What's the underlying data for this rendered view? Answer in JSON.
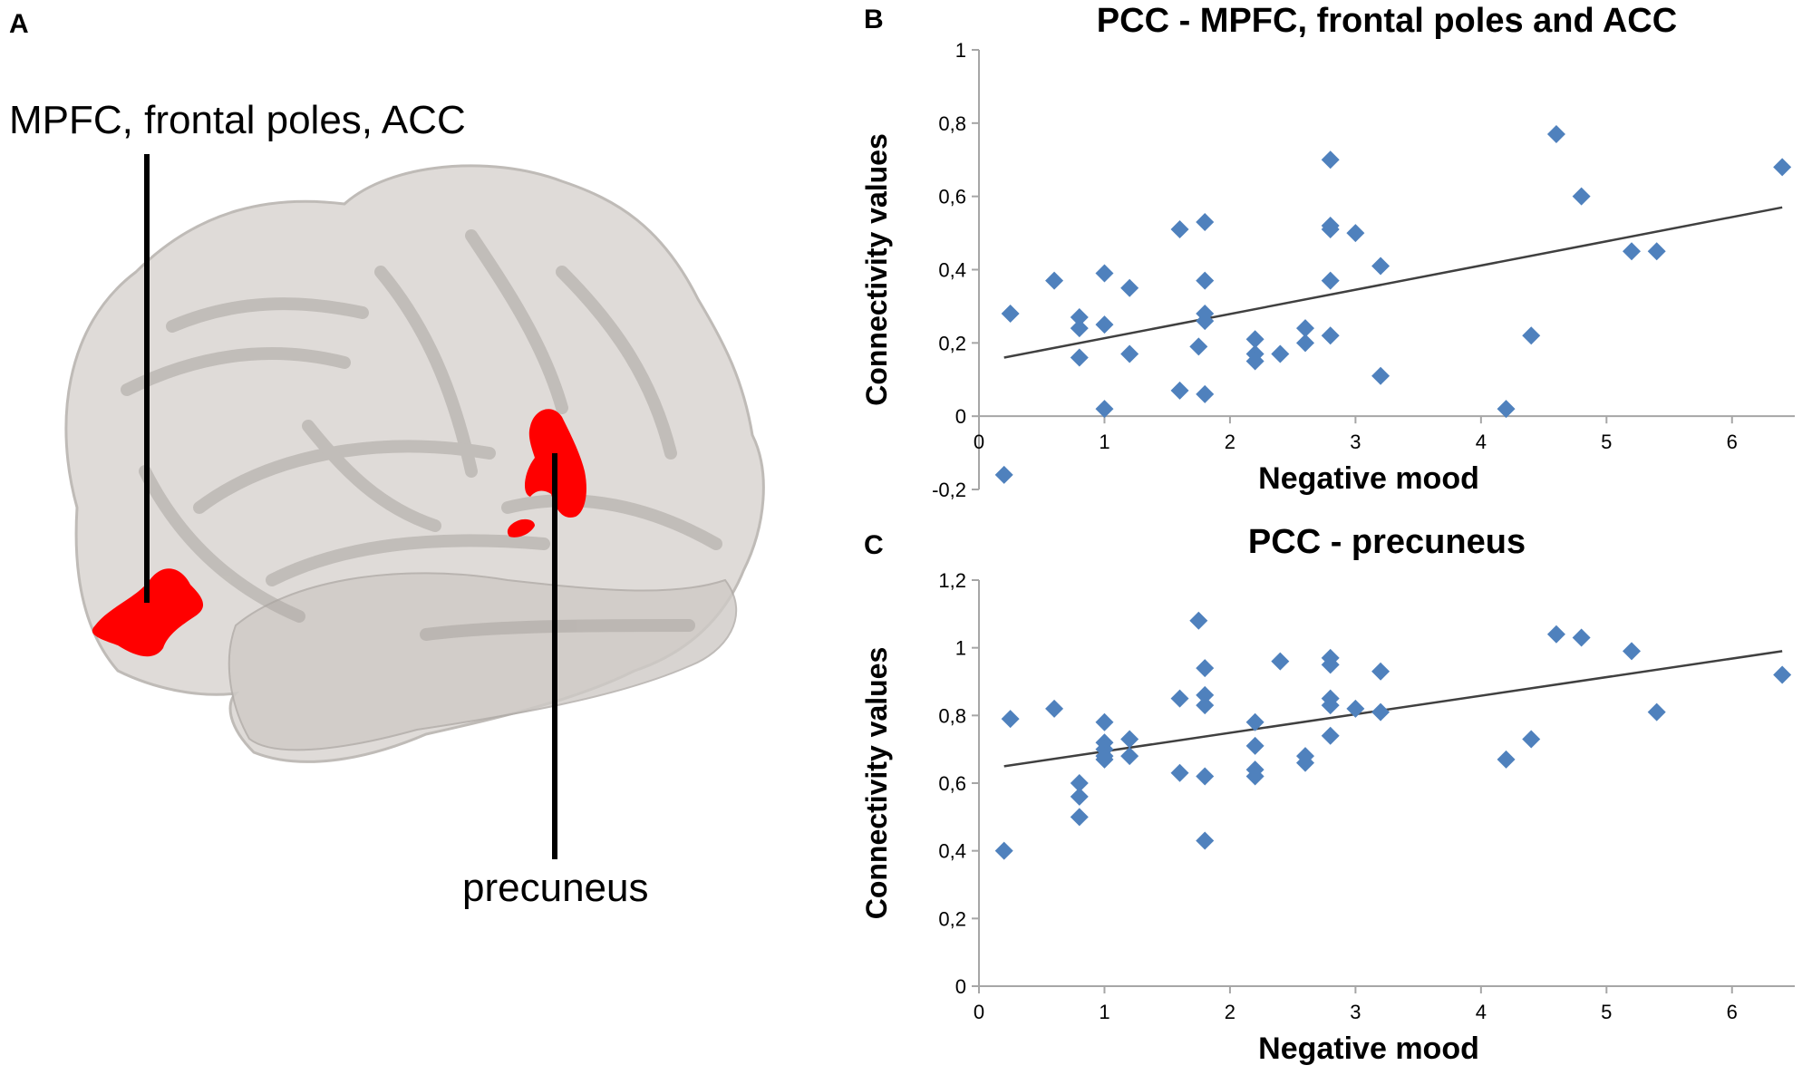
{
  "panel_a": {
    "letter": "A",
    "label_mpfc": "MPFC, frontal poles, ACC",
    "label_precuneus": "precuneus"
  },
  "colors": {
    "marker": "#4f81bd",
    "trend": "#404040",
    "axis": "#a6a6a6",
    "region": "#ff0000",
    "brain": "#d8d4d0"
  },
  "chart_data": [
    {
      "id": "B",
      "type": "scatter",
      "title": "PCC -  MPFC, frontal poles and ACC",
      "xlabel": "Negative mood",
      "ylabel": "Connectivity  values",
      "xlim": [
        0,
        6.5
      ],
      "ylim": [
        -0.2,
        1
      ],
      "xticks": [
        0,
        1,
        2,
        3,
        4,
        5,
        6
      ],
      "yticks": [
        -0.2,
        0,
        0.2,
        0.4,
        0.6,
        0.8,
        1
      ],
      "xtick_labels": [
        "0",
        "1",
        "2",
        "3",
        "4",
        "5",
        "6"
      ],
      "ytick_labels": [
        "-0,2",
        "0",
        "0,2",
        "0,4",
        "0,6",
        "0,8",
        "1"
      ],
      "trendline": [
        [
          0.2,
          0.16
        ],
        [
          6.4,
          0.57
        ]
      ],
      "points": [
        [
          0.2,
          -0.16
        ],
        [
          0.25,
          0.28
        ],
        [
          0.6,
          0.37
        ],
        [
          0.8,
          0.27
        ],
        [
          0.8,
          0.24
        ],
        [
          0.8,
          0.16
        ],
        [
          1.0,
          0.39
        ],
        [
          1.0,
          0.25
        ],
        [
          1.0,
          0.02
        ],
        [
          1.2,
          0.35
        ],
        [
          1.2,
          0.17
        ],
        [
          1.6,
          0.51
        ],
        [
          1.6,
          0.07
        ],
        [
          1.75,
          0.19
        ],
        [
          1.8,
          0.53
        ],
        [
          1.8,
          0.37
        ],
        [
          1.8,
          0.28
        ],
        [
          1.8,
          0.26
        ],
        [
          1.8,
          0.06
        ],
        [
          2.2,
          0.21
        ],
        [
          2.2,
          0.17
        ],
        [
          2.2,
          0.15
        ],
        [
          2.4,
          0.17
        ],
        [
          2.6,
          0.24
        ],
        [
          2.6,
          0.2
        ],
        [
          2.8,
          0.7
        ],
        [
          2.8,
          0.52
        ],
        [
          2.8,
          0.51
        ],
        [
          2.8,
          0.37
        ],
        [
          2.8,
          0.22
        ],
        [
          3.0,
          0.5
        ],
        [
          3.2,
          0.41
        ],
        [
          3.2,
          0.11
        ],
        [
          4.2,
          0.02
        ],
        [
          4.4,
          0.22
        ],
        [
          4.6,
          0.77
        ],
        [
          4.8,
          0.6
        ],
        [
          5.2,
          0.45
        ],
        [
          5.4,
          0.45
        ],
        [
          6.4,
          0.68
        ]
      ]
    },
    {
      "id": "C",
      "type": "scatter",
      "title": "PCC -  precuneus",
      "xlabel": "Negative mood",
      "ylabel": "Connectivity  values",
      "xlim": [
        0,
        6.5
      ],
      "ylim": [
        0,
        1.2
      ],
      "xticks": [
        0,
        1,
        2,
        3,
        4,
        5,
        6
      ],
      "yticks": [
        0,
        0.2,
        0.4,
        0.6,
        0.8,
        1,
        1.2
      ],
      "xtick_labels": [
        "0",
        "1",
        "2",
        "3",
        "4",
        "5",
        "6"
      ],
      "ytick_labels": [
        "0",
        "0,2",
        "0,4",
        "0,6",
        "0,8",
        "1",
        "1,2"
      ],
      "trendline": [
        [
          0.2,
          0.65
        ],
        [
          6.4,
          0.99
        ]
      ],
      "points": [
        [
          0.2,
          0.4
        ],
        [
          0.25,
          0.79
        ],
        [
          0.6,
          0.82
        ],
        [
          0.8,
          0.6
        ],
        [
          0.8,
          0.56
        ],
        [
          0.8,
          0.5
        ],
        [
          1.0,
          0.78
        ],
        [
          1.0,
          0.72
        ],
        [
          1.0,
          0.7
        ],
        [
          1.0,
          0.68
        ],
        [
          1.0,
          0.67
        ],
        [
          1.2,
          0.73
        ],
        [
          1.2,
          0.68
        ],
        [
          1.6,
          0.85
        ],
        [
          1.6,
          0.63
        ],
        [
          1.75,
          1.08
        ],
        [
          1.8,
          0.94
        ],
        [
          1.8,
          0.86
        ],
        [
          1.8,
          0.83
        ],
        [
          1.8,
          0.62
        ],
        [
          1.8,
          0.43
        ],
        [
          2.2,
          0.78
        ],
        [
          2.2,
          0.71
        ],
        [
          2.2,
          0.64
        ],
        [
          2.2,
          0.62
        ],
        [
          2.4,
          0.96
        ],
        [
          2.6,
          0.68
        ],
        [
          2.6,
          0.66
        ],
        [
          2.8,
          0.97
        ],
        [
          2.8,
          0.95
        ],
        [
          2.8,
          0.85
        ],
        [
          2.8,
          0.83
        ],
        [
          2.8,
          0.74
        ],
        [
          3.0,
          0.82
        ],
        [
          3.2,
          0.93
        ],
        [
          3.2,
          0.81
        ],
        [
          4.2,
          0.67
        ],
        [
          4.4,
          0.73
        ],
        [
          4.6,
          1.04
        ],
        [
          4.8,
          1.03
        ],
        [
          5.2,
          0.99
        ],
        [
          5.4,
          0.81
        ],
        [
          6.4,
          0.92
        ]
      ]
    }
  ]
}
